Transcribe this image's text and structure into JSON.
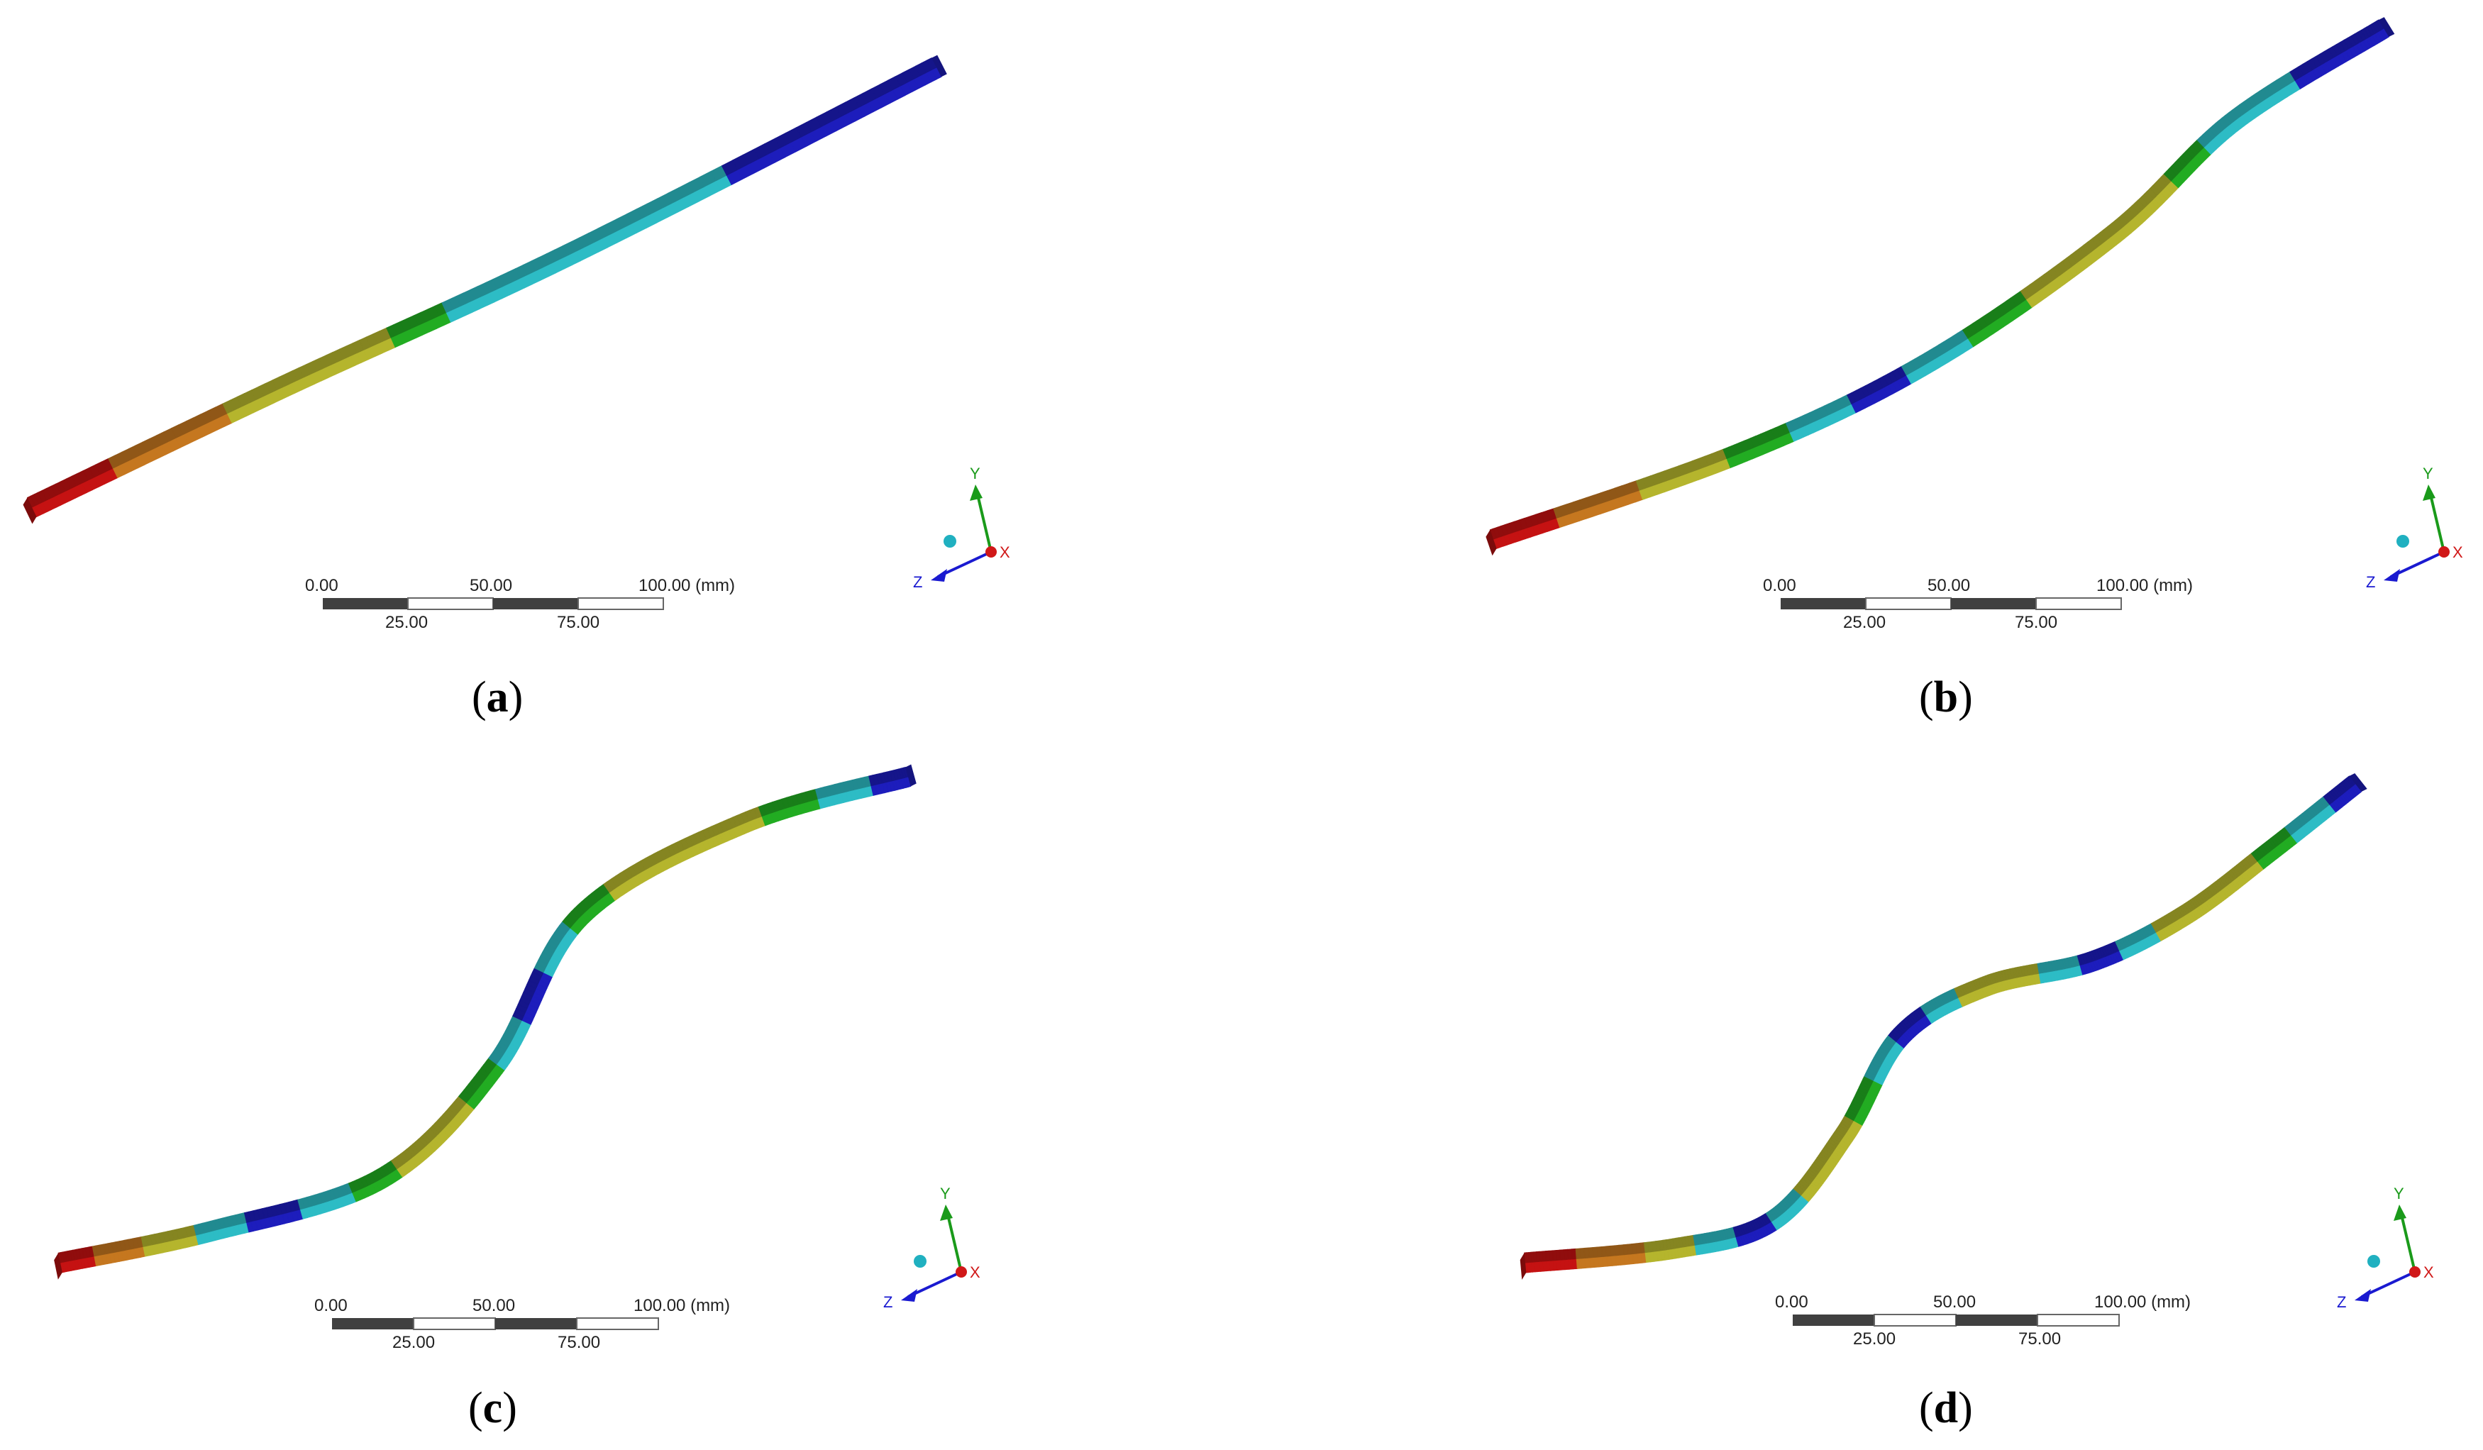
{
  "panels": [
    {
      "id": "a",
      "caption": "a"
    },
    {
      "id": "b",
      "caption": "b"
    },
    {
      "id": "c",
      "caption": "c"
    },
    {
      "id": "d",
      "caption": "d"
    }
  ],
  "scale_bar": {
    "top_labels": [
      "0.00",
      "50.00",
      "100.00 (mm)"
    ],
    "bottom_labels": [
      "25.00",
      "75.00"
    ]
  },
  "triad": {
    "x_label": "X",
    "y_label": "Y",
    "z_label": "Z"
  },
  "colors": {
    "red": "#b01010",
    "orange": "#b06a1c",
    "olive": "#a2a228",
    "green": "#1e9a1e",
    "teal": "#28a8b0",
    "blue": "#1a1aa8",
    "axis_x": "#d01818",
    "axis_y": "#1a9a1a",
    "axis_z": "#1a1ad0"
  }
}
